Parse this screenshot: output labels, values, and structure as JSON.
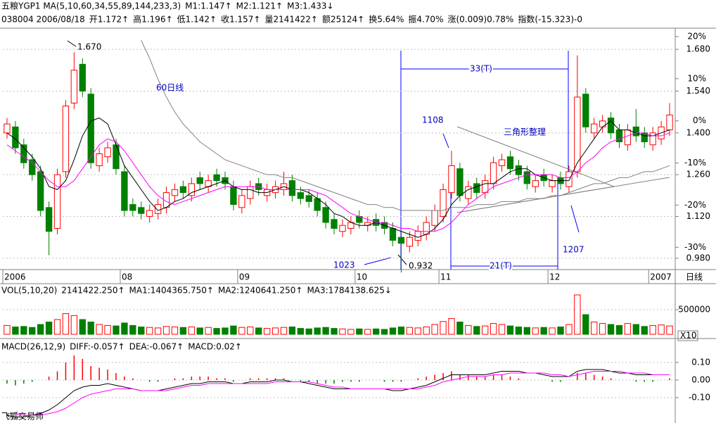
{
  "header": {
    "row1": [
      {
        "text": "五粮YGP1 MA(5,10,60,34,55,89,144,233,3)",
        "color": "#000000"
      },
      {
        "text": "M1:1.147↑",
        "color": "#000080"
      },
      {
        "text": "M2:1.121↑",
        "color": "#ff00ff"
      },
      {
        "text": "M3:1.433↓",
        "color": "#808080"
      }
    ],
    "row2": [
      {
        "text": "038004 2006/08/18",
        "color": "#000000"
      },
      {
        "text": "开1.172↑",
        "color": "#ff0000"
      },
      {
        "text": "高1.196↑",
        "color": "#ff0000"
      },
      {
        "text": "低1.142↑",
        "color": "#008000"
      },
      {
        "text": "收1.157↑",
        "color": "#ff0000"
      },
      {
        "text": "量2141422↑",
        "color": "#000000"
      },
      {
        "text": "额25124↑",
        "color": "#000000"
      },
      {
        "text": "换5.64%",
        "color": "#000000"
      },
      {
        "text": "振4.70%",
        "color": "#000000"
      },
      {
        "text": "涨(0.009)0.78%",
        "color": "#ff0000"
      },
      {
        "text": "指数(-15.323)-0",
        "color": "#008000"
      }
    ]
  },
  "footer": "飞狐交易师",
  "chart_data": [
    {
      "type": "candlestick",
      "up_color": "#ff0000",
      "down_color": "#008000",
      "open": [
        1.4,
        1.42,
        1.36,
        1.31,
        1.27,
        1.15,
        1.08,
        1.27,
        1.5,
        1.63,
        1.53,
        1.29,
        1.32,
        1.36,
        1.27,
        1.16,
        1.15,
        1.12,
        1.13,
        1.15,
        1.19,
        1.22,
        1.19,
        1.25,
        1.22,
        1.26,
        1.25,
        1.22,
        1.15,
        1.18,
        1.23,
        1.19,
        1.2,
        1.21,
        1.24,
        1.2,
        1.19,
        1.18,
        1.15,
        1.11,
        1.07,
        1.08,
        1.12,
        1.09,
        1.11,
        1.1,
        1.08,
        1.05,
        1.02,
        1.04,
        1.06,
        1.09,
        1.12,
        1.2,
        1.28,
        1.18,
        1.23,
        1.2,
        1.23,
        1.29,
        1.32,
        1.29,
        1.27,
        1.22,
        1.26,
        1.22,
        1.25,
        1.22,
        1.27,
        1.53,
        1.4,
        1.42,
        1.45,
        1.41,
        1.36,
        1.42,
        1.4,
        1.36,
        1.38,
        1.41
      ],
      "high": [
        1.45,
        1.44,
        1.38,
        1.33,
        1.29,
        1.17,
        1.28,
        1.51,
        1.67,
        1.65,
        1.55,
        1.35,
        1.37,
        1.38,
        1.29,
        1.18,
        1.17,
        1.16,
        1.18,
        1.22,
        1.23,
        1.24,
        1.25,
        1.27,
        1.26,
        1.28,
        1.27,
        1.24,
        1.21,
        1.24,
        1.25,
        1.23,
        1.24,
        1.27,
        1.26,
        1.22,
        1.21,
        1.2,
        1.17,
        1.13,
        1.11,
        1.12,
        1.14,
        1.12,
        1.13,
        1.12,
        1.1,
        1.07,
        1.07,
        1.09,
        1.12,
        1.16,
        1.23,
        1.34,
        1.3,
        1.24,
        1.25,
        1.26,
        1.32,
        1.33,
        1.34,
        1.31,
        1.29,
        1.26,
        1.28,
        1.26,
        1.27,
        1.29,
        1.66,
        1.55,
        1.45,
        1.46,
        1.47,
        1.43,
        1.43,
        1.48,
        1.42,
        1.42,
        1.44,
        1.5
      ],
      "low": [
        1.38,
        1.33,
        1.28,
        1.24,
        1.12,
        0.99,
        1.06,
        1.25,
        1.48,
        1.52,
        1.28,
        1.27,
        1.3,
        1.26,
        1.12,
        1.12,
        1.11,
        1.1,
        1.11,
        1.13,
        1.17,
        1.18,
        1.17,
        1.21,
        1.2,
        1.22,
        1.21,
        1.14,
        1.13,
        1.16,
        1.19,
        1.17,
        1.18,
        1.19,
        1.17,
        1.16,
        1.15,
        1.12,
        1.08,
        1.06,
        1.05,
        1.06,
        1.08,
        1.07,
        1.07,
        1.06,
        1.02,
        0.932,
        1.0,
        1.02,
        1.04,
        1.07,
        1.1,
        1.18,
        1.17,
        1.16,
        1.18,
        1.18,
        1.21,
        1.27,
        1.26,
        1.24,
        1.21,
        1.2,
        1.22,
        1.2,
        1.21,
        1.2,
        1.25,
        1.4,
        1.38,
        1.4,
        1.38,
        1.35,
        1.34,
        1.37,
        1.35,
        1.34,
        1.36,
        1.39
      ],
      "close": [
        1.43,
        1.35,
        1.3,
        1.26,
        1.14,
        1.07,
        1.26,
        1.49,
        1.61,
        1.54,
        1.3,
        1.33,
        1.35,
        1.28,
        1.14,
        1.14,
        1.13,
        1.14,
        1.16,
        1.2,
        1.21,
        1.2,
        1.23,
        1.23,
        1.24,
        1.24,
        1.23,
        1.16,
        1.19,
        1.22,
        1.21,
        1.21,
        1.22,
        1.23,
        1.19,
        1.18,
        1.17,
        1.14,
        1.1,
        1.08,
        1.09,
        1.1,
        1.1,
        1.1,
        1.09,
        1.08,
        1.04,
        1.03,
        1.05,
        1.07,
        1.1,
        1.14,
        1.21,
        1.29,
        1.19,
        1.22,
        1.2,
        1.24,
        1.3,
        1.31,
        1.28,
        1.26,
        1.23,
        1.24,
        1.24,
        1.24,
        1.23,
        1.27,
        1.52,
        1.42,
        1.43,
        1.44,
        1.4,
        1.37,
        1.41,
        1.39,
        1.37,
        1.4,
        1.42,
        1.46
      ],
      "series": [
        {
          "color": "#000000",
          "values": [
            1.4,
            1.38,
            1.35,
            1.32,
            1.28,
            1.22,
            1.21,
            1.24,
            1.31,
            1.39,
            1.44,
            1.45,
            1.43,
            1.36,
            1.29,
            1.25,
            1.21,
            1.17,
            1.14,
            1.15,
            1.17,
            1.18,
            1.2,
            1.21,
            1.22,
            1.23,
            1.24,
            1.22,
            1.21,
            1.21,
            1.2,
            1.2,
            1.21,
            1.22,
            1.21,
            1.21,
            1.2,
            1.18,
            1.16,
            1.13,
            1.12,
            1.1,
            1.09,
            1.09,
            1.1,
            1.09,
            1.08,
            1.07,
            1.06,
            1.05,
            1.06,
            1.08,
            1.11,
            1.16,
            1.19,
            1.21,
            1.22,
            1.23,
            1.23,
            1.25,
            1.27,
            1.28,
            1.28,
            1.26,
            1.25,
            1.24,
            1.24,
            1.24,
            1.3,
            1.34,
            1.38,
            1.42,
            1.44,
            1.41,
            1.41,
            1.4,
            1.39,
            1.39,
            1.4,
            1.41
          ]
        },
        {
          "color": "#ff00ff",
          "values": [
            1.36,
            1.34,
            1.32,
            1.3,
            1.27,
            1.24,
            1.22,
            1.22,
            1.24,
            1.28,
            1.32,
            1.36,
            1.38,
            1.37,
            1.34,
            1.3,
            1.26,
            1.22,
            1.19,
            1.17,
            1.16,
            1.17,
            1.18,
            1.19,
            1.2,
            1.21,
            1.22,
            1.22,
            1.22,
            1.22,
            1.22,
            1.21,
            1.21,
            1.21,
            1.21,
            1.21,
            1.21,
            1.2,
            1.19,
            1.17,
            1.15,
            1.13,
            1.12,
            1.11,
            1.1,
            1.1,
            1.09,
            1.08,
            1.08,
            1.07,
            1.07,
            1.07,
            1.08,
            1.1,
            1.13,
            1.16,
            1.18,
            1.2,
            1.22,
            1.23,
            1.24,
            1.25,
            1.26,
            1.26,
            1.26,
            1.26,
            1.25,
            1.25,
            1.27,
            1.3,
            1.32,
            1.35,
            1.37,
            1.38,
            1.39,
            1.4,
            1.4,
            1.39,
            1.39,
            1.4
          ]
        },
        {
          "color": "#808080",
          "values": [
            null,
            null,
            null,
            null,
            null,
            null,
            null,
            null,
            null,
            null,
            null,
            null,
            null,
            null,
            null,
            null,
            1.71,
            1.65,
            1.58,
            1.52,
            1.47,
            1.43,
            1.4,
            1.37,
            1.35,
            1.33,
            1.31,
            1.3,
            1.29,
            1.28,
            1.27,
            1.26,
            1.26,
            1.25,
            1.25,
            1.24,
            1.23,
            1.22,
            1.21,
            1.2,
            1.19,
            1.18,
            1.17,
            1.16,
            1.16,
            1.15,
            1.15,
            1.14,
            1.14,
            1.14,
            1.14,
            1.14,
            1.14,
            1.15,
            1.15,
            1.15,
            1.16,
            1.16,
            1.16,
            1.17,
            1.17,
            1.17,
            1.18,
            1.18,
            1.18,
            1.19,
            1.19,
            1.2,
            1.21,
            1.22,
            1.23,
            1.23,
            1.24,
            1.25,
            1.25,
            1.26,
            1.27,
            1.27,
            1.28,
            1.29
          ]
        }
      ],
      "ylim": [
        0.942,
        1.751
      ],
      "yticks": [
        {
          "value": 1.68,
          "label": "1.680"
        },
        {
          "value": 1.54,
          "label": "1.540"
        },
        {
          "value": 1.4,
          "label": "1.400"
        },
        {
          "value": 1.26,
          "label": "1.260"
        },
        {
          "value": 1.12,
          "label": "1.120"
        },
        {
          "value": 0.98,
          "label": "0.980"
        }
      ],
      "y2lim": [
        -35.3,
        22
      ],
      "y2ticks": [
        {
          "value": 20,
          "label": "20%"
        },
        {
          "value": 10,
          "label": "10%"
        },
        {
          "value": 0,
          "label": "0%"
        },
        {
          "value": -10,
          "label": "-10%"
        },
        {
          "value": -20,
          "label": "-20%"
        },
        {
          "value": -30,
          "label": "-30%"
        }
      ],
      "xticks": [
        {
          "value": 0,
          "label": "2006"
        },
        {
          "value": 14,
          "label": "08"
        },
        {
          "value": 28,
          "label": "09"
        },
        {
          "value": 42,
          "label": "10"
        },
        {
          "value": 52,
          "label": "11"
        },
        {
          "value": 65,
          "label": "12"
        },
        {
          "value": 77,
          "label": "2007"
        }
      ],
      "xlabel": "日线",
      "annotations": [
        "1.670",
        "0.932",
        "1108",
        "1023",
        "1207",
        "60日线",
        "三角形整理",
        "33(T)",
        "21(T)"
      ]
    },
    {
      "type": "volume",
      "indicators": [
        {
          "text": "VOL(5,10,20)",
          "color": "#000000"
        },
        {
          "text": "2141422.250↑",
          "color": "#000000"
        },
        {
          "text": "MA1:1404365.750↑",
          "color": "#ff00ff"
        },
        {
          "text": "MA2:1240641.250↑",
          "color": "#808080"
        },
        {
          "text": "MA3:1784138.625↓",
          "color": "#800000"
        }
      ],
      "values": [
        180000,
        150000,
        160000,
        140000,
        200000,
        250000,
        300000,
        420000,
        380000,
        300000,
        250000,
        200000,
        180000,
        170000,
        230000,
        180000,
        150000,
        140000,
        130000,
        160000,
        150000,
        140000,
        150000,
        130000,
        140000,
        120000,
        130000,
        170000,
        140000,
        150000,
        130000,
        120000,
        130000,
        140000,
        150000,
        120000,
        110000,
        130000,
        140000,
        120000,
        110000,
        100000,
        110000,
        100000,
        110000,
        100000,
        130000,
        150000,
        140000,
        130000,
        150000,
        200000,
        260000,
        320000,
        250000,
        180000,
        160000,
        170000,
        220000,
        200000,
        170000,
        150000,
        140000,
        130000,
        140000,
        130000,
        150000,
        200000,
        800000,
        400000,
        250000,
        220000,
        200000,
        180000,
        220000,
        200000,
        160000,
        180000,
        190000,
        170000
      ],
      "ylim": [
        0,
        1000000
      ],
      "yticks": [
        500000
      ],
      "scale_label": "X10"
    },
    {
      "type": "macd",
      "indicators": [
        {
          "text": "MACD(26,12,9)",
          "color": "#000000"
        },
        {
          "text": "DIFF:-0.057↑",
          "color": "#000080"
        },
        {
          "text": "DEA:-0.067↑",
          "color": "#ff00ff"
        },
        {
          "text": "MACD:0.02↑",
          "color": "#808080"
        }
      ],
      "values": [
        -0.02,
        -0.03,
        -0.02,
        -0.01,
        0.0,
        0.02,
        0.05,
        0.1,
        0.14,
        0.12,
        0.08,
        0.07,
        0.06,
        0.04,
        0.02,
        0.01,
        0.0,
        -0.01,
        -0.01,
        0.0,
        0.01,
        0.01,
        0.02,
        0.02,
        0.02,
        0.01,
        0.01,
        -0.01,
        0.0,
        0.01,
        0.01,
        0.01,
        0.01,
        0.01,
        0.0,
        -0.01,
        -0.01,
        -0.02,
        -0.02,
        -0.02,
        -0.01,
        -0.01,
        -0.01,
        0.0,
        0.0,
        -0.01,
        -0.01,
        -0.01,
        0.0,
        0.01,
        0.02,
        0.03,
        0.04,
        0.05,
        0.03,
        0.03,
        0.02,
        0.02,
        0.03,
        0.03,
        0.02,
        0.01,
        0.0,
        0.0,
        0.0,
        -0.01,
        -0.01,
        0.0,
        0.04,
        0.04,
        0.03,
        0.02,
        0.01,
        0.0,
        0.0,
        -0.01,
        -0.01,
        -0.01,
        0.0,
        0.01
      ],
      "series": [
        {
          "color": "#000000",
          "values": [
            -0.2,
            -0.21,
            -0.21,
            -0.2,
            -0.19,
            -0.17,
            -0.14,
            -0.1,
            -0.06,
            -0.04,
            -0.03,
            -0.03,
            -0.02,
            -0.03,
            -0.04,
            -0.05,
            -0.06,
            -0.06,
            -0.06,
            -0.05,
            -0.04,
            -0.03,
            -0.02,
            -0.02,
            -0.01,
            -0.01,
            -0.01,
            -0.02,
            -0.02,
            -0.01,
            -0.01,
            -0.01,
            0.0,
            0.0,
            -0.01,
            -0.01,
            -0.02,
            -0.03,
            -0.04,
            -0.05,
            -0.05,
            -0.05,
            -0.05,
            -0.05,
            -0.05,
            -0.05,
            -0.06,
            -0.06,
            -0.05,
            -0.04,
            -0.03,
            -0.01,
            0.01,
            0.03,
            0.03,
            0.03,
            0.03,
            0.03,
            0.04,
            0.05,
            0.05,
            0.05,
            0.04,
            0.04,
            0.03,
            0.02,
            0.02,
            0.02,
            0.05,
            0.06,
            0.06,
            0.06,
            0.05,
            0.04,
            0.04,
            0.03,
            0.03,
            0.03,
            0.03,
            0.03
          ]
        },
        {
          "color": "#ff00ff",
          "values": [
            -0.19,
            -0.19,
            -0.2,
            -0.2,
            -0.2,
            -0.19,
            -0.18,
            -0.16,
            -0.13,
            -0.1,
            -0.08,
            -0.07,
            -0.06,
            -0.05,
            -0.05,
            -0.05,
            -0.06,
            -0.06,
            -0.06,
            -0.06,
            -0.05,
            -0.04,
            -0.03,
            -0.03,
            -0.02,
            -0.02,
            -0.02,
            -0.02,
            -0.02,
            -0.02,
            -0.02,
            -0.02,
            -0.01,
            -0.01,
            -0.01,
            -0.01,
            -0.01,
            -0.02,
            -0.03,
            -0.04,
            -0.04,
            -0.05,
            -0.05,
            -0.05,
            -0.05,
            -0.05,
            -0.05,
            -0.05,
            -0.05,
            -0.05,
            -0.04,
            -0.03,
            -0.01,
            0.0,
            0.01,
            0.02,
            0.02,
            0.02,
            0.03,
            0.03,
            0.04,
            0.04,
            0.04,
            0.04,
            0.04,
            0.03,
            0.03,
            0.02,
            0.03,
            0.04,
            0.05,
            0.05,
            0.05,
            0.05,
            0.04,
            0.04,
            0.04,
            0.03,
            0.03,
            0.03
          ]
        }
      ],
      "ylim": [
        -0.24,
        0.224
      ],
      "yticks": [
        {
          "value": 0.1,
          "label": "0.10"
        },
        {
          "value": 0,
          "label": "0.00"
        },
        {
          "value": -0.1,
          "label": "-0.10"
        }
      ]
    }
  ]
}
